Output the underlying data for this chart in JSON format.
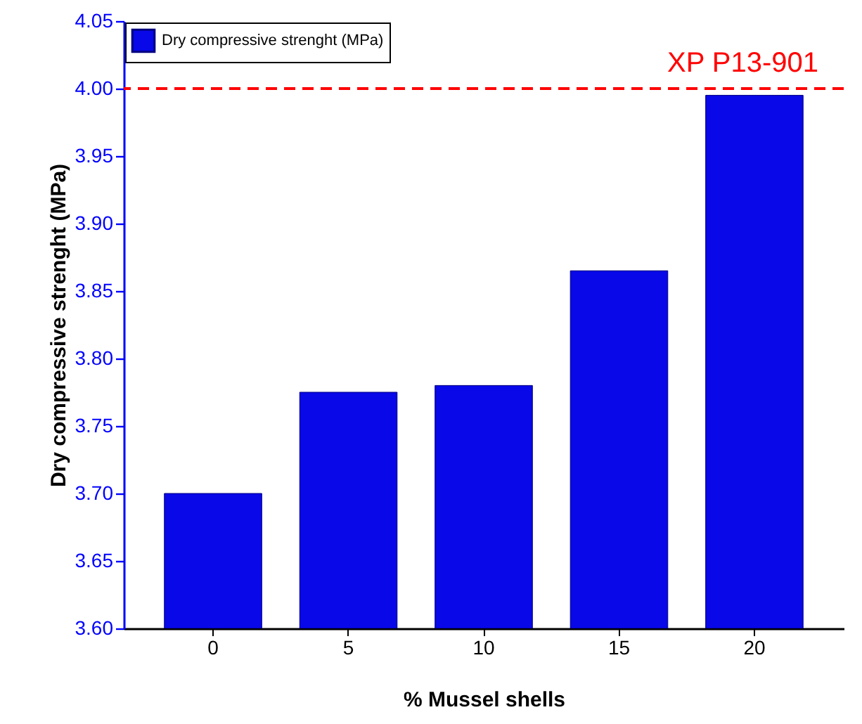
{
  "chart_data": {
    "type": "bar",
    "xlabel": "% Mussel shells",
    "ylabel": "Dry compressive strenght (MPa)",
    "categories": [
      "0",
      "5",
      "10",
      "15",
      "20"
    ],
    "series": [
      {
        "name": "Dry compressive strenght (MPa)",
        "color": "#0808e8",
        "values": [
          3.7,
          3.775,
          3.78,
          3.865,
          3.995
        ]
      }
    ],
    "ylim": [
      3.6,
      4.05
    ],
    "yticks": [
      {
        "value": 3.6,
        "label": "3.60"
      },
      3.65,
      {
        "value": 3.7,
        "label": "3.70"
      },
      3.75,
      {
        "value": 3.8,
        "label": "3.80"
      },
      3.85,
      {
        "value": 3.9,
        "label": "3.90"
      },
      3.95,
      {
        "value": 4.0,
        "label": "4.00"
      },
      4.05
    ],
    "ref_lines": [
      {
        "axis": "y",
        "value": 4.0,
        "label": "XP P13-901",
        "color": "#ff0000",
        "line_style": "dashed"
      }
    ],
    "legend": "top left"
  }
}
